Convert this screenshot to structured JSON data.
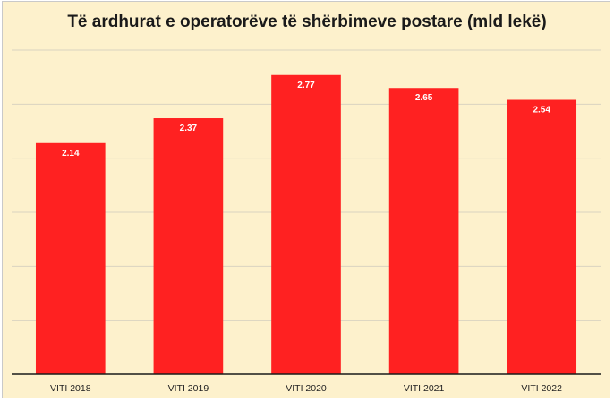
{
  "chart_data": {
    "type": "bar",
    "title": "Të ardhurat e operatorëve të shërbimeve postare (mld lekë)",
    "categories": [
      "VITI 2018",
      "VITI 2019",
      "VITI 2020",
      "VITI 2021",
      "VITI 2022"
    ],
    "values": [
      2.14,
      2.37,
      2.77,
      2.65,
      2.54
    ],
    "value_labels": [
      "2.14",
      "2.37",
      "2.77",
      "2.65",
      "2.54"
    ],
    "ylim": [
      0,
      3
    ],
    "grid": true,
    "colors": {
      "bar": "#ff2121",
      "background": "#fdf1cc",
      "grid": "#d9d3c0",
      "axis": "#1a1a1a"
    }
  }
}
